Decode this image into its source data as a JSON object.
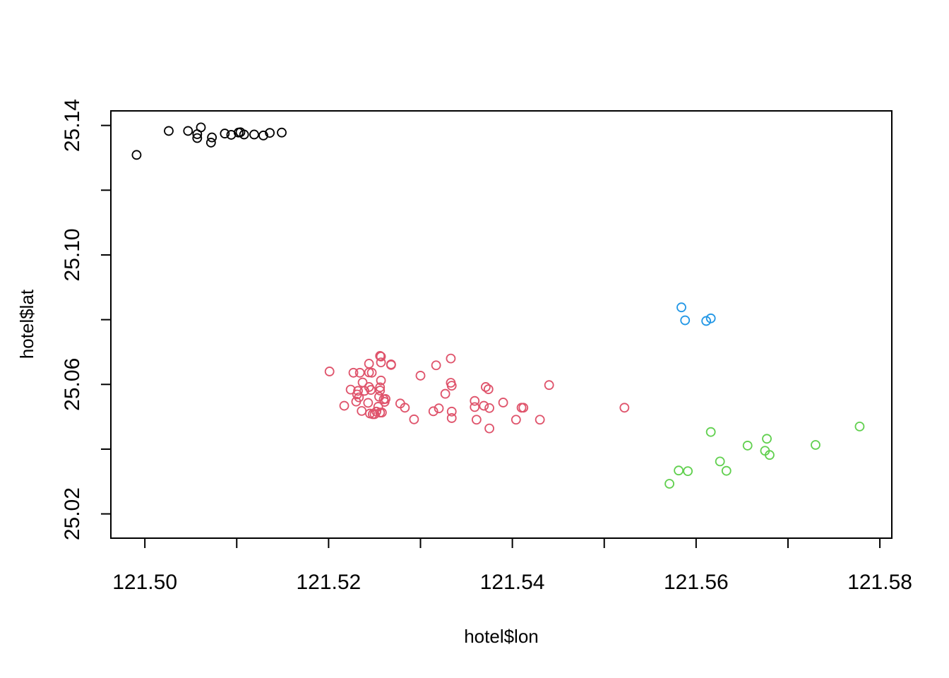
{
  "chart_data": {
    "type": "scatter",
    "title": "",
    "xlabel": "hotel$lon",
    "ylabel": "hotel$lat",
    "xlim": [
      121.4963,
      121.5813
    ],
    "ylim": [
      25.0125,
      25.1445
    ],
    "xticks": [
      "121.50",
      "121.52",
      "121.54",
      "121.56",
      "121.58"
    ],
    "yticks": [
      "25.02",
      "25.06",
      "25.10",
      "25.14"
    ],
    "grid": false,
    "legend": "none",
    "series": [
      {
        "color": "#000000",
        "points": [
          [
            121.4991,
            25.1309
          ],
          [
            121.5026,
            25.1383
          ],
          [
            121.5047,
            25.1383
          ],
          [
            121.5057,
            25.1373
          ],
          [
            121.5057,
            25.1361
          ],
          [
            121.5061,
            25.1394
          ],
          [
            121.5072,
            25.1347
          ],
          [
            121.5073,
            25.1363
          ],
          [
            121.5087,
            25.1375
          ],
          [
            121.5094,
            25.1371
          ],
          [
            121.5102,
            25.1378
          ],
          [
            121.5104,
            25.1379
          ],
          [
            121.5108,
            25.1372
          ],
          [
            121.5119,
            25.1372
          ],
          [
            121.5129,
            25.1369
          ],
          [
            121.5136,
            25.1377
          ],
          [
            121.5149,
            25.1378
          ]
        ]
      },
      {
        "color": "#DF536B",
        "points": [
          [
            121.5201,
            25.064
          ],
          [
            121.5217,
            25.0534
          ],
          [
            121.5224,
            25.0584
          ],
          [
            121.5227,
            25.0636
          ],
          [
            121.523,
            25.0547
          ],
          [
            121.5231,
            25.0569
          ],
          [
            121.5232,
            25.058
          ],
          [
            121.5233,
            25.056
          ],
          [
            121.5234,
            25.0636
          ],
          [
            121.5236,
            25.0518
          ],
          [
            121.5237,
            25.0606
          ],
          [
            121.5239,
            25.058
          ],
          [
            121.5243,
            25.0543
          ],
          [
            121.5244,
            25.0592
          ],
          [
            121.5244,
            25.0664
          ],
          [
            121.5244,
            25.0637
          ],
          [
            121.5245,
            25.051
          ],
          [
            121.5246,
            25.0583
          ],
          [
            121.5247,
            25.0636
          ],
          [
            121.5248,
            25.0508
          ],
          [
            121.525,
            25.0508
          ],
          [
            121.5252,
            25.0516
          ],
          [
            121.5254,
            25.0531
          ],
          [
            121.5255,
            25.0562
          ],
          [
            121.5256,
            25.0591
          ],
          [
            121.5256,
            25.0581
          ],
          [
            121.5256,
            25.0513
          ],
          [
            121.5256,
            25.0688
          ],
          [
            121.5257,
            25.0668
          ],
          [
            121.5257,
            25.0612
          ],
          [
            121.5257,
            25.0686
          ],
          [
            121.5258,
            25.0513
          ],
          [
            121.526,
            25.0554
          ],
          [
            121.5261,
            25.0546
          ],
          [
            121.5262,
            25.0555
          ],
          [
            121.5268,
            25.0662
          ],
          [
            121.5268,
            25.066
          ],
          [
            121.5278,
            25.0541
          ],
          [
            121.5283,
            25.0528
          ],
          [
            121.5293,
            25.0492
          ],
          [
            121.53,
            25.0627
          ],
          [
            121.5314,
            25.0517
          ],
          [
            121.5317,
            25.0659
          ],
          [
            121.532,
            25.0526
          ],
          [
            121.5327,
            25.0571
          ],
          [
            121.5333,
            25.068
          ],
          [
            121.5333,
            25.0605
          ],
          [
            121.5334,
            25.0596
          ],
          [
            121.5334,
            25.0516
          ],
          [
            121.5334,
            25.0496
          ],
          [
            121.5359,
            25.0549
          ],
          [
            121.5359,
            25.053
          ],
          [
            121.5361,
            25.0491
          ],
          [
            121.5369,
            25.0534
          ],
          [
            121.5371,
            25.0592
          ],
          [
            121.5374,
            25.0585
          ],
          [
            121.5375,
            25.0464
          ],
          [
            121.5375,
            25.0527
          ],
          [
            121.539,
            25.0544
          ],
          [
            121.5404,
            25.0491
          ],
          [
            121.541,
            25.0528
          ],
          [
            121.5412,
            25.0528
          ],
          [
            121.543,
            25.0491
          ],
          [
            121.544,
            25.0598
          ],
          [
            121.5522,
            25.0528
          ]
        ]
      },
      {
        "color": "#2297E6",
        "points": [
          [
            121.5584,
            25.0838
          ],
          [
            121.5588,
            25.0798
          ],
          [
            121.5611,
            25.0796
          ],
          [
            121.5616,
            25.0804
          ]
        ]
      },
      {
        "color": "#61D04F",
        "points": [
          [
            121.5571,
            25.0293
          ],
          [
            121.5581,
            25.0334
          ],
          [
            121.5591,
            25.0332
          ],
          [
            121.5616,
            25.0453
          ],
          [
            121.5626,
            25.0362
          ],
          [
            121.5633,
            25.0333
          ],
          [
            121.5656,
            25.0411
          ],
          [
            121.5675,
            25.0395
          ],
          [
            121.5677,
            25.0432
          ],
          [
            121.568,
            25.0382
          ],
          [
            121.573,
            25.0413
          ],
          [
            121.5778,
            25.047
          ]
        ]
      }
    ]
  }
}
